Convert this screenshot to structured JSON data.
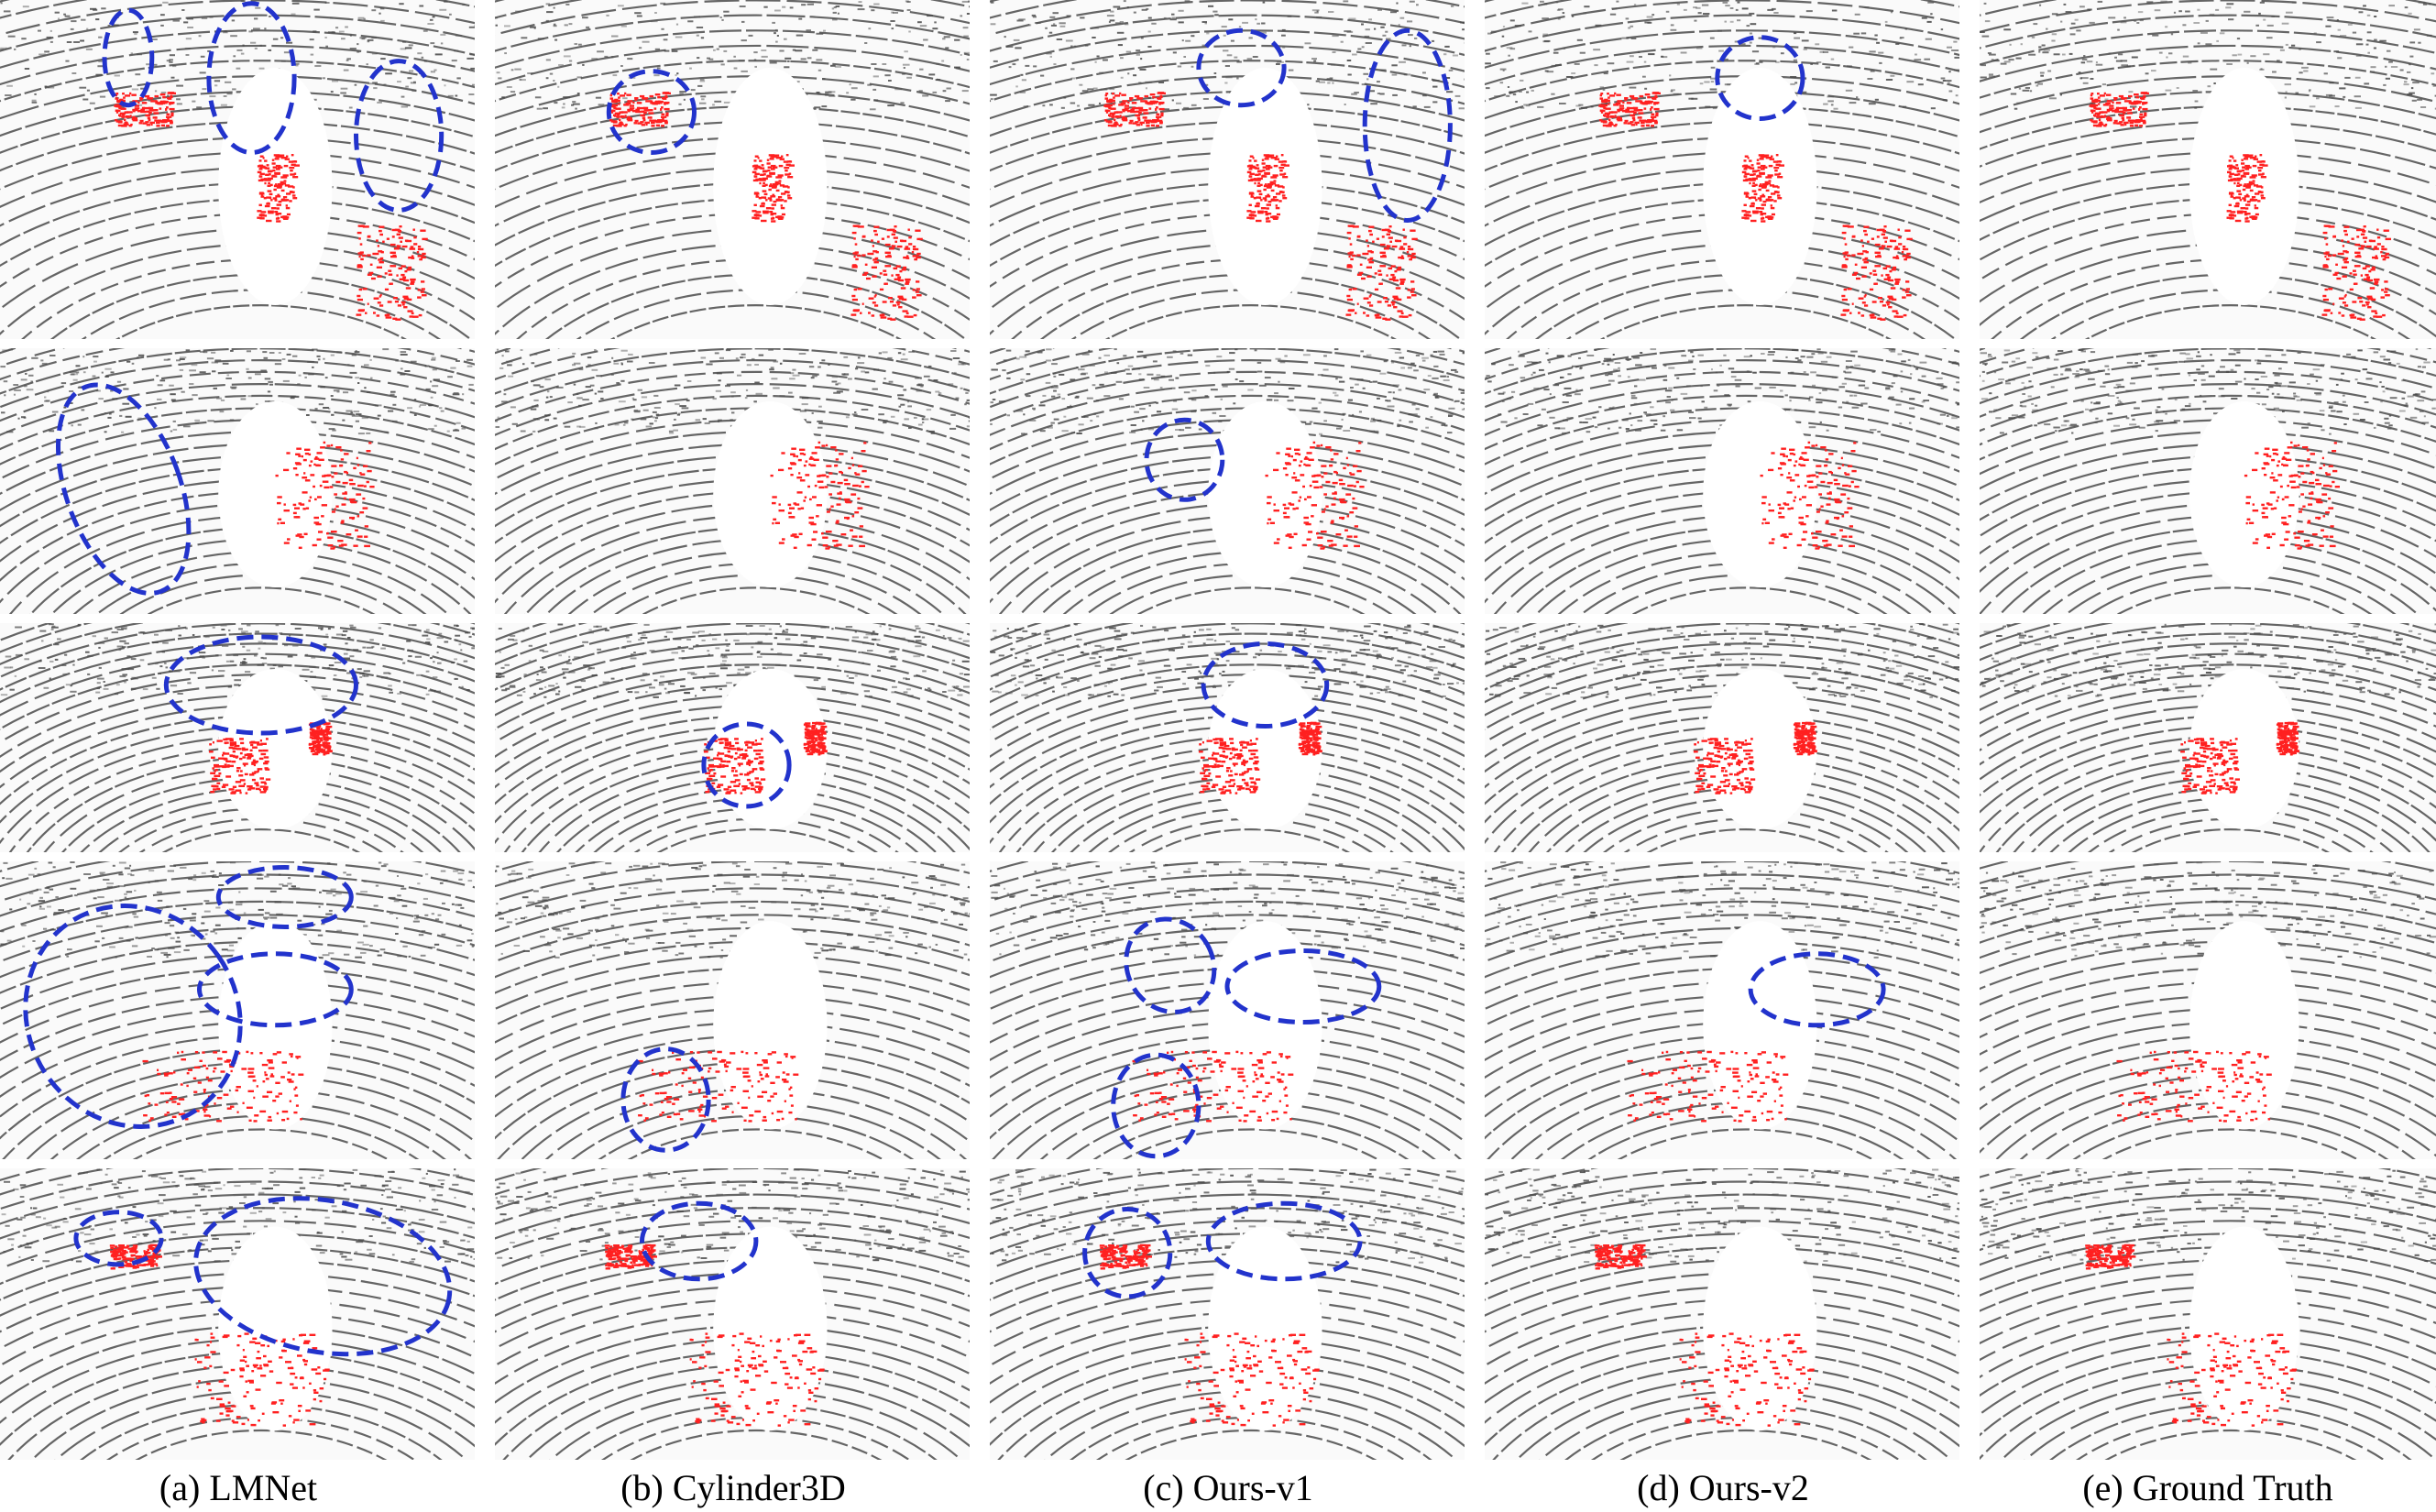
{
  "figure": {
    "columns": [
      {
        "id": "a",
        "caption": "(a) LMNet"
      },
      {
        "id": "b",
        "caption": "(b) Cylinder3D"
      },
      {
        "id": "c",
        "caption": "(c) Ours-v1"
      },
      {
        "id": "d",
        "caption": "(d) Ours-v2"
      },
      {
        "id": "e",
        "caption": "(e) Ground Truth"
      }
    ],
    "rows": 5
  },
  "colors": {
    "static_points": "#4a4a4a",
    "moving_points": "#ff2020",
    "highlight_ellipse": "#2233cc",
    "background": "#ffffff"
  },
  "icons": {
    "highlight": "dashed-ellipse"
  }
}
